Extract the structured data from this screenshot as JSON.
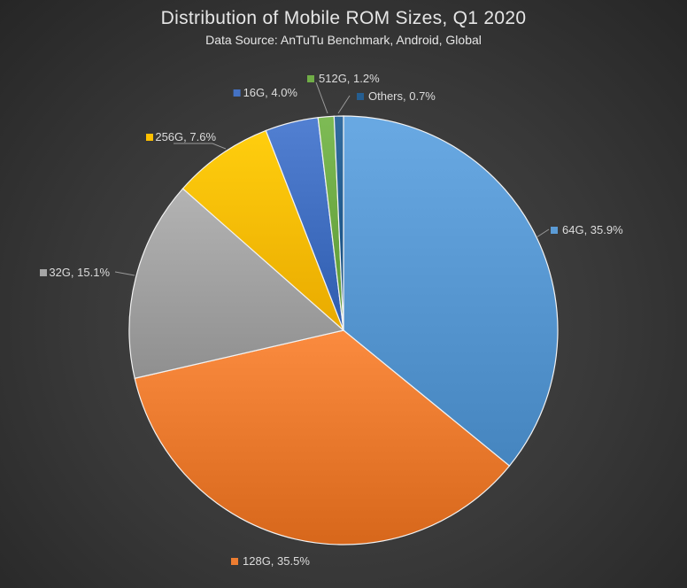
{
  "chart_data": {
    "type": "pie",
    "title": "Distribution of Mobile ROM Sizes, Q1 2020",
    "subtitle": "Data Source: AnTuTu Benchmark, Android, Global",
    "slices": [
      {
        "name": "64G",
        "value": 35.9,
        "label": "64G, 35.9%",
        "color": "#5b9bd5"
      },
      {
        "name": "128G",
        "value": 35.5,
        "label": "128G, 35.5%",
        "color": "#ed7d31"
      },
      {
        "name": "32G",
        "value": 15.1,
        "label": "32G, 15.1%",
        "color": "#a5a5a5"
      },
      {
        "name": "256G",
        "value": 7.6,
        "label": "256G, 7.6%",
        "color": "#ffc000"
      },
      {
        "name": "16G",
        "value": 4.0,
        "label": "16G, 4.0%",
        "color": "#4472c4"
      },
      {
        "name": "512G",
        "value": 1.2,
        "label": "512G, 1.2%",
        "color": "#70ad47"
      },
      {
        "name": "Others",
        "value": 0.7,
        "label": "Others, 0.7%",
        "color": "#255e91"
      }
    ],
    "start_angle": "12 o'clock",
    "direction": "clockwise",
    "label_style": "outside with leader lines"
  }
}
